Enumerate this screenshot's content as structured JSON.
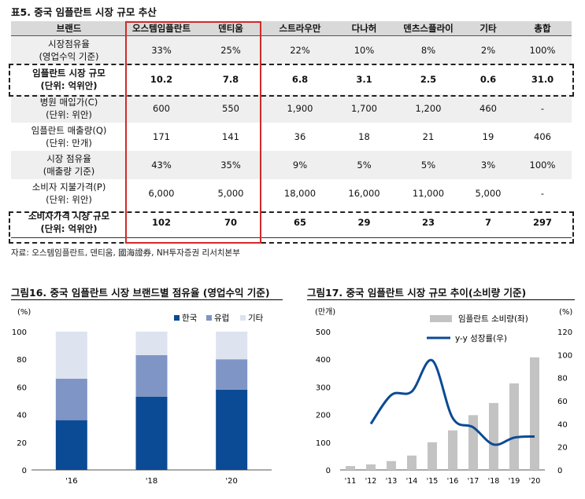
{
  "table": {
    "title": "표5. 중국 임플란트 시장 규모 추산",
    "headers": [
      "브랜드",
      "오스템임플란트",
      "덴티움",
      "스트라우만",
      "다나허",
      "덴츠스플라이",
      "기타",
      "총합"
    ],
    "rows": [
      {
        "label1": "시장점유율",
        "label2": "(영업수익 기준)",
        "values": [
          "33%",
          "25%",
          "22%",
          "10%",
          "8%",
          "2%",
          "100%"
        ],
        "shade": true,
        "bold": false
      },
      {
        "label1": "임플란트 시장 규모",
        "label2": "(단위: 억위안)",
        "values": [
          "10.2",
          "7.8",
          "6.8",
          "3.1",
          "2.5",
          "0.6",
          "31.0"
        ],
        "shade": false,
        "bold": true
      },
      {
        "label1": "병원 매입가(C)",
        "label2": "(단위: 위안)",
        "values": [
          "600",
          "550",
          "1,900",
          "1,700",
          "1,200",
          "460",
          "-"
        ],
        "shade": true,
        "bold": false
      },
      {
        "label1": "임플란트 매출량(Q)",
        "label2": "(단위: 만개)",
        "values": [
          "171",
          "141",
          "36",
          "18",
          "21",
          "19",
          "406"
        ],
        "shade": false,
        "bold": false
      },
      {
        "label1": "시장 점유율",
        "label2": "(매출량 기준)",
        "values": [
          "43%",
          "35%",
          "9%",
          "5%",
          "5%",
          "3%",
          "100%"
        ],
        "shade": true,
        "bold": false
      },
      {
        "label1": "소비자 지불가격(P)",
        "label2": "(단위: 위안)",
        "values": [
          "6,000",
          "5,000",
          "18,000",
          "16,000",
          "11,000",
          "5,000",
          "-"
        ],
        "shade": false,
        "bold": false
      },
      {
        "label1": "소비자가격 시장 규모",
        "label2": "(단위: 억위안)",
        "values": [
          "102",
          "70",
          "65",
          "29",
          "23",
          "7",
          "297"
        ],
        "shade": false,
        "bold": true
      }
    ],
    "source": "자료: 오스템임플란트, 덴티움, 國海證券, NH투자증권 리서치본부"
  },
  "chart16": {
    "title": "그림16. 중국 임플란트 시장 브랜드별 점유율 (영업수익 기준)",
    "unit": "(%)",
    "legend": [
      "한국",
      "유럽",
      "기타"
    ]
  },
  "chart17": {
    "title": "그림17. 중국 임플란트 시장 규모 추이(소비량 기준)",
    "unit_left": "(만개)",
    "unit_right": "(%)",
    "legend": [
      "임플란트 소비량(좌)",
      "y-y 성장률(우)"
    ]
  },
  "colors": {
    "korea": "#0b4a94",
    "europe": "#7f95c5",
    "other": "#dde3ef",
    "bar_gray": "#c3c3c3",
    "line": "#0b4a94",
    "red": "#d12a2a"
  },
  "chart_data": [
    {
      "type": "bar",
      "stacked": true,
      "categories": [
        "'16",
        "'18",
        "'20"
      ],
      "series": [
        {
          "name": "한국",
          "values": [
            36,
            53,
            58
          ]
        },
        {
          "name": "유럽",
          "values": [
            30,
            30,
            22
          ]
        },
        {
          "name": "기타",
          "values": [
            34,
            17,
            20
          ]
        }
      ],
      "ylim": [
        0,
        100
      ],
      "yticks": [
        0,
        20,
        40,
        60,
        80,
        100
      ],
      "legend_position": "top-right"
    },
    {
      "type": "bar+line",
      "categories": [
        "'11",
        "'12",
        "'13",
        "'14",
        "'15",
        "'16",
        "'17",
        "'18",
        "'19",
        "'20"
      ],
      "series": [
        {
          "name": "임플란트 소비량(좌)",
          "type": "bar",
          "axis": "left",
          "values": [
            14,
            20,
            32,
            52,
            100,
            143,
            198,
            242,
            313,
            407
          ]
        },
        {
          "name": "y-y 성장률(우)",
          "type": "line",
          "axis": "right",
          "values": [
            null,
            40,
            65,
            68,
            95,
            45,
            37,
            22,
            28,
            29
          ]
        }
      ],
      "ylim_left": [
        0,
        500
      ],
      "yticks_left": [
        0,
        100,
        200,
        300,
        400,
        500
      ],
      "ylim_right": [
        0,
        120
      ],
      "yticks_right": [
        0,
        20,
        40,
        60,
        80,
        100,
        120
      ],
      "legend_position": "top-right"
    }
  ]
}
